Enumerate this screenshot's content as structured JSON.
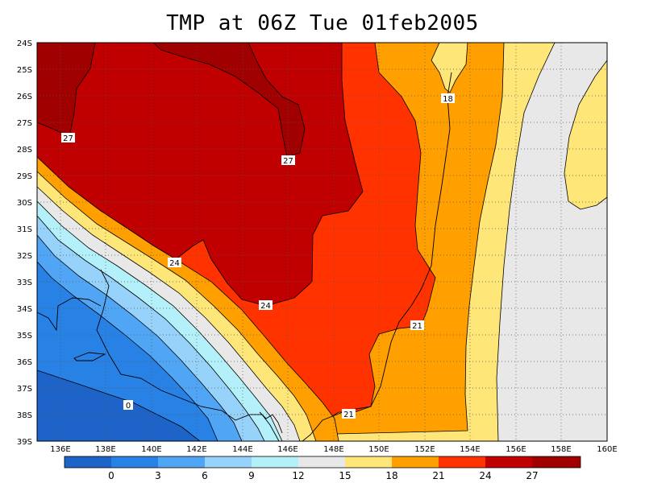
{
  "title": "TMP at 06Z Tue 01feb2005",
  "map": {
    "lon_range": [
      135,
      160
    ],
    "lat_range": [
      -39,
      -24
    ],
    "x_ticks": [
      "136E",
      "138E",
      "140E",
      "142E",
      "144E",
      "146E",
      "148E",
      "150E",
      "152E",
      "154E",
      "156E",
      "158E",
      "160E"
    ],
    "y_ticks": [
      "24S",
      "25S",
      "26S",
      "27S",
      "28S",
      "29S",
      "30S",
      "31S",
      "32S",
      "33S",
      "34S",
      "35S",
      "36S",
      "37S",
      "38S",
      "39S"
    ],
    "grid": "dotted"
  },
  "contour_labels": [
    "27",
    "27",
    "18",
    "24",
    "24",
    "21",
    "21",
    "0"
  ],
  "colorbar": {
    "labels": [
      "0",
      "3",
      "6",
      "9",
      "12",
      "15",
      "18",
      "21",
      "24",
      "27"
    ],
    "colors": [
      "#1e64c8",
      "#2882e6",
      "#50a5f5",
      "#96d2fa",
      "#b4f0fa",
      "#e8e8e8",
      "#ffe678",
      "#ffa000",
      "#ff3200",
      "#c00000",
      "#a00000"
    ]
  },
  "palette": {
    "c27": "#a50000",
    "c24": "#c00000",
    "c21": "#ff3200",
    "c18": "#ffa000",
    "c15": "#ffe678",
    "c12": "#e8e8e8",
    "c9": "#b4f0fa",
    "c6": "#96d2fa",
    "c3": "#50a5f5",
    "c0": "#2882e6",
    "cm": "#1e64c8"
  }
}
